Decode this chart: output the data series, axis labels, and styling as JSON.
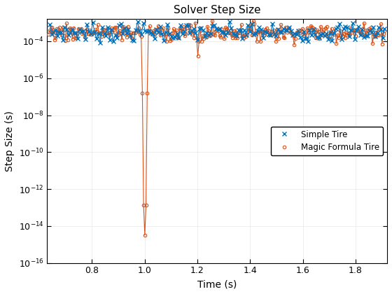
{
  "title": "Solver Step Size",
  "xlabel": "Time (s)",
  "ylabel": "Step Size (s)",
  "xlim": [
    0.63,
    1.92
  ],
  "ylim_log": [
    -16,
    -2.8
  ],
  "simple_color": "#0072BD",
  "magic_color": "#D95319",
  "legend_labels": [
    "Simple Tire",
    "Magic Formula Tire"
  ],
  "background_color": "#FFFFFF",
  "nominal_level_log": -3.5,
  "noise_scale": 0.25,
  "spike1_time": 1.0,
  "spike1_bottom_log": -14.5,
  "spike2_time": 1.2,
  "spike2_bottom_log": -4.8,
  "n_points_simple": 180,
  "n_points_magic": 280,
  "title_fontsize": 11,
  "label_fontsize": 10,
  "tick_fontsize": 9
}
